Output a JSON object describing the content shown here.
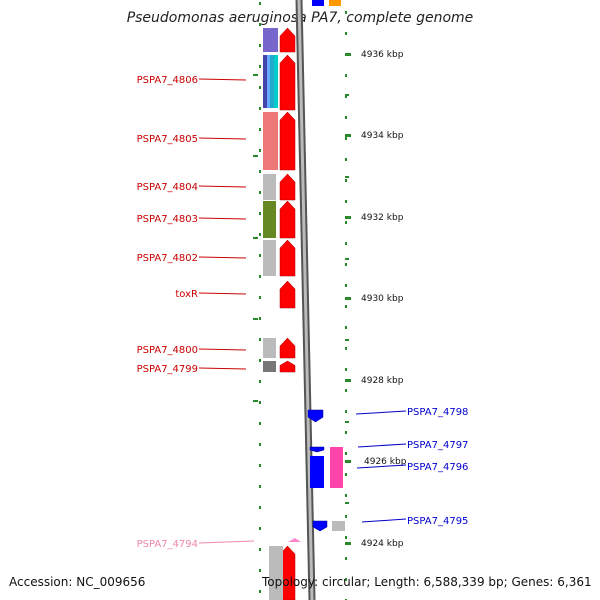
{
  "title": "Pseudomonas aeruginosa PA7, complete genome",
  "footer": {
    "accession": "Accession: NC_009656",
    "topology": "Topology: circular; Length: 6,588,339 bp; Genes: 6,361"
  },
  "scale": {
    "unit": "kbp",
    "ticks": [
      "4936 kbp",
      "4934 kbp",
      "4932 kbp",
      "4930 kbp",
      "4928 kbp",
      "4926 kbp",
      "4924 kbp"
    ]
  },
  "colors": {
    "forward_label": "#cc0000",
    "reverse_label": "#0000cc",
    "pseudo_label": "#ee88aa",
    "forward_arrow": "#ff0000",
    "reverse_arrow": "#0000ff",
    "tick": "#2a8a2a",
    "backbone": "#888888"
  },
  "labels_left": [
    "PSPA7_4806",
    "PSPA7_4805",
    "PSPA7_4804",
    "PSPA7_4803",
    "PSPA7_4802",
    "toxR",
    "PSPA7_4800",
    "PSPA7_4799",
    "PSPA7_4794"
  ],
  "labels_right": [
    "PSPA7_4798",
    "PSPA7_4797",
    "PSPA7_4796",
    "PSPA7_4795"
  ]
}
